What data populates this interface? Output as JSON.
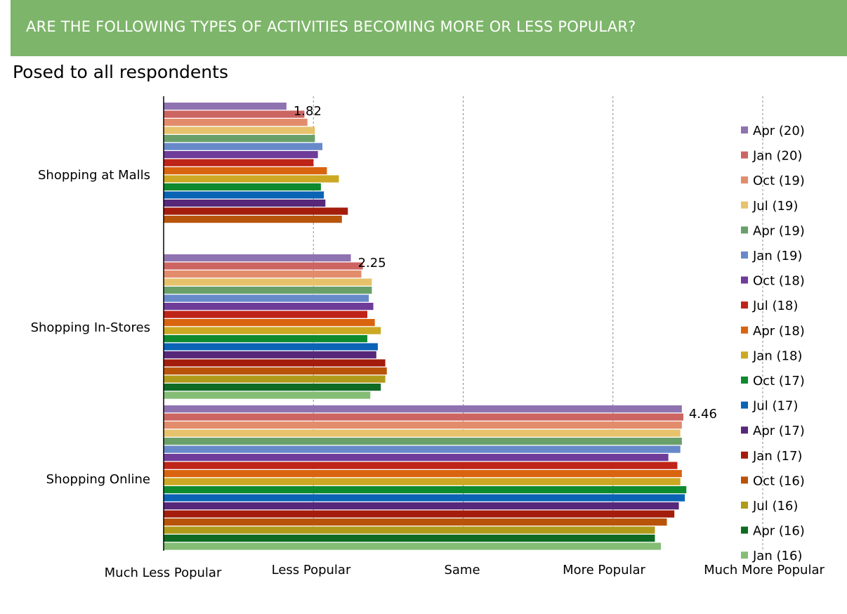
{
  "header": {
    "title": "ARE THE FOLLOWING TYPES OF ACTIVITIES BECOMING MORE OR LESS POPULAR?",
    "subtitle": "Posed to all respondents",
    "banner_color": "#7db56a"
  },
  "chart_data": {
    "type": "bar",
    "orientation": "horizontal",
    "title": "ARE THE FOLLOWING TYPES OF ACTIVITIES BECOMING MORE OR LESS POPULAR?",
    "subtitle": "Posed to all respondents",
    "categories": [
      "Shopping at Malls",
      "Shopping In-Stores",
      "Shopping Online"
    ],
    "xlim": [
      1,
      5
    ],
    "x_ticks": [
      1,
      2,
      3,
      4,
      5
    ],
    "x_tick_labels": [
      "Much Less Popular",
      "Less Popular",
      "Same",
      "More Popular",
      "Much More Popular"
    ],
    "grid": "vertical dashed",
    "legend_position": "right",
    "series": [
      {
        "name": "Apr (20)",
        "color": "#8f73b0",
        "values": [
          1.82,
          2.25,
          4.46
        ]
      },
      {
        "name": "Jan (20)",
        "color": "#cc6562",
        "values": [
          1.94,
          2.33,
          4.47
        ]
      },
      {
        "name": "Oct (19)",
        "color": "#e38c6c",
        "values": [
          1.96,
          2.32,
          4.46
        ]
      },
      {
        "name": "Jul (19)",
        "color": "#e6c26d",
        "values": [
          2.01,
          2.39,
          4.45
        ]
      },
      {
        "name": "Apr (19)",
        "color": "#69a06a",
        "values": [
          2.01,
          2.39,
          4.46
        ]
      },
      {
        "name": "Jan (19)",
        "color": "#6889c9",
        "values": [
          2.06,
          2.37,
          4.45
        ]
      },
      {
        "name": "Oct (18)",
        "color": "#6f3c9a",
        "values": [
          2.03,
          2.4,
          4.37
        ]
      },
      {
        "name": "Jul (18)",
        "color": "#bf2418",
        "values": [
          2.0,
          2.36,
          4.43
        ]
      },
      {
        "name": "Apr (18)",
        "color": "#d9640f",
        "values": [
          2.09,
          2.41,
          4.46
        ]
      },
      {
        "name": "Jan (18)",
        "color": "#cca823",
        "values": [
          2.17,
          2.45,
          4.45
        ]
      },
      {
        "name": "Oct (17)",
        "color": "#0e8a2e",
        "values": [
          2.05,
          2.36,
          4.49
        ]
      },
      {
        "name": "Jul (17)",
        "color": "#0a63b5",
        "values": [
          2.07,
          2.43,
          4.48
        ]
      },
      {
        "name": "Apr (17)",
        "color": "#57287a",
        "values": [
          2.08,
          2.42,
          4.44
        ]
      },
      {
        "name": "Jan (17)",
        "color": "#a31c0c",
        "values": [
          2.23,
          2.48,
          4.41
        ]
      },
      {
        "name": "Oct (16)",
        "color": "#b85409",
        "values": [
          2.19,
          2.49,
          4.36
        ]
      },
      {
        "name": "Jul (16)",
        "color": "#b09a1a",
        "values": [
          null,
          2.48,
          4.28
        ]
      },
      {
        "name": "Apr (16)",
        "color": "#0f6b23",
        "values": [
          null,
          2.45,
          4.28
        ]
      },
      {
        "name": "Jan (16)",
        "color": "#86bd76",
        "values": [
          null,
          2.38,
          4.32
        ]
      }
    ],
    "data_labels": [
      {
        "category": "Shopping at Malls",
        "series": "Apr (20)",
        "text": "1.82"
      },
      {
        "category": "Shopping In-Stores",
        "series": "Apr (20)",
        "text": "2.25"
      },
      {
        "category": "Shopping Online",
        "series": "Apr (20)",
        "text": "4.46"
      }
    ]
  }
}
